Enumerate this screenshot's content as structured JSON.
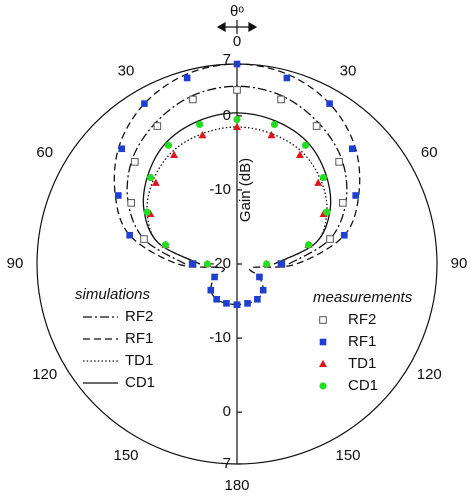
{
  "chart_data": {
    "type": "polar",
    "xlabel": "θᵒ",
    "ylabel": "Gain (dB)",
    "x": [
      -180,
      -165,
      -150,
      -135,
      -120,
      -105,
      -90,
      -75,
      -60,
      -45,
      -30,
      -15,
      0,
      15,
      30,
      45,
      60,
      75,
      90,
      105,
      120,
      135,
      150,
      165,
      180
    ],
    "xticks": [
      0,
      30,
      60,
      90,
      120,
      150,
      180
    ],
    "ylim": [
      -20,
      7
    ],
    "yticks": [
      -20,
      -10,
      0,
      7
    ],
    "groups": [
      {
        "title": "simulations",
        "series": [
          {
            "name": "RF2",
            "style": "dashdot",
            "color": "#111111",
            "values": [
              null,
              null,
              null,
              null,
              null,
              null,
              -13,
              -7,
              -3,
              0,
              2,
              3.5,
              4,
              3.5,
              2,
              0,
              -3,
              -7,
              -13,
              null,
              null,
              null,
              null,
              null,
              null
            ]
          },
          {
            "name": "RF1",
            "style": "dashed",
            "color": "#111111",
            "values": [
              -14.5,
              -14.5,
              -14.5,
              -15,
              -16.5,
              -18,
              -12,
              -5,
              -1,
              2.5,
              5,
              6.5,
              7,
              6.5,
              5,
              2.5,
              -1,
              -5,
              -12,
              -18,
              -16.5,
              -15,
              -14.5,
              -14.5,
              -14.5
            ]
          },
          {
            "name": "TD1",
            "style": "dotted",
            "color": "#111111",
            "values": [
              null,
              null,
              null,
              null,
              null,
              null,
              -15,
              -9,
              -6,
              -4,
              -2.5,
              -1.8,
              -1.5,
              -1.8,
              -2.5,
              -4,
              -6,
              -9,
              -15,
              null,
              null,
              null,
              null,
              null,
              null
            ]
          },
          {
            "name": "CD1",
            "style": "solid",
            "color": "#111111",
            "values": [
              null,
              null,
              null,
              null,
              null,
              null,
              -15,
              -9,
              -5.5,
              -3,
              -1,
              0,
              0.4,
              0,
              -1,
              -3,
              -5.5,
              -9,
              -15,
              null,
              null,
              null,
              null,
              null,
              null
            ]
          }
        ]
      },
      {
        "title": "measurements",
        "series": [
          {
            "name": "RF2",
            "marker": "open-square",
            "color": "#555555",
            "values": [
              null,
              null,
              null,
              null,
              null,
              null,
              -14,
              -7,
              -3.5,
              -0.5,
              1.5,
              3,
              3.5,
              3,
              1.5,
              -0.5,
              -3.5,
              -7,
              -14,
              null,
              null,
              null,
              null,
              null,
              null
            ]
          },
          {
            "name": "RF1",
            "marker": "square",
            "color": "#1f3fd0",
            "values": [
              -14.5,
              -14.5,
              -14.5,
              -15,
              -16.5,
              null,
              -14,
              -5,
              -1.5,
              2,
              5,
              6,
              7,
              6,
              5,
              2,
              -1.5,
              -5,
              -14,
              null,
              -16.5,
              -15,
              -14.5,
              -14.5,
              -14.5
            ]
          },
          {
            "name": "TD1",
            "marker": "triangle",
            "color": "#e0141e",
            "values": [
              null,
              null,
              null,
              null,
              null,
              null,
              -16,
              -10,
              -6.5,
              -4.5,
              -3,
              -2,
              -1.5,
              -2,
              -3,
              -4.5,
              -6.5,
              -10,
              -16,
              null,
              null,
              null,
              null,
              null,
              null
            ]
          },
          {
            "name": "CD1",
            "marker": "circle",
            "color": "#22dd22",
            "values": [
              null,
              null,
              null,
              null,
              null,
              null,
              -16,
              -10,
              -6,
              -3.5,
              -1.5,
              -0.5,
              -0.5,
              -0.5,
              -1.5,
              -3.5,
              -6,
              -10,
              -16,
              null,
              null,
              null,
              null,
              null,
              null
            ]
          }
        ]
      }
    ]
  }
}
